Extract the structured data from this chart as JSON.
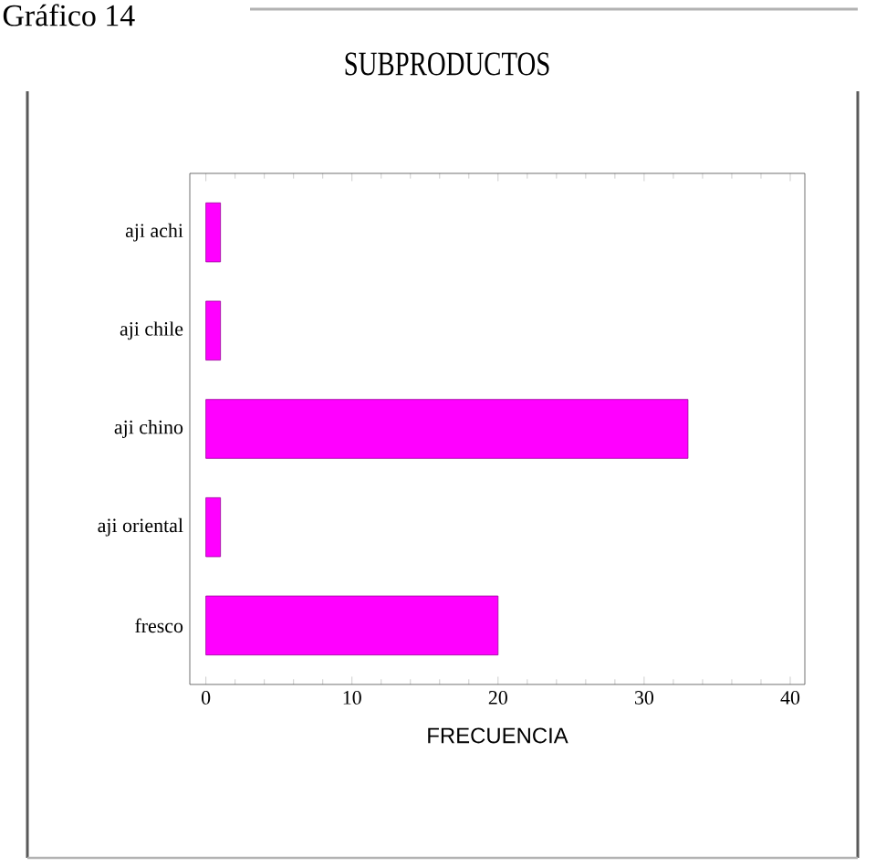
{
  "chart_data": {
    "type": "bar",
    "orientation": "horizontal",
    "title": "SUBPRODUCTOS",
    "xlabel": "FRECUENCIA",
    "annotations": [
      "Gráfico 14"
    ],
    "categories": [
      "aji achi",
      "aji chile",
      "aji chino",
      "aji oriental",
      "fresco"
    ],
    "values": [
      1,
      1,
      33,
      1,
      20
    ],
    "color": "#ff00ff",
    "xlim": [
      -1.1,
      41
    ],
    "xticks": [
      0,
      10,
      20,
      30,
      40
    ]
  }
}
